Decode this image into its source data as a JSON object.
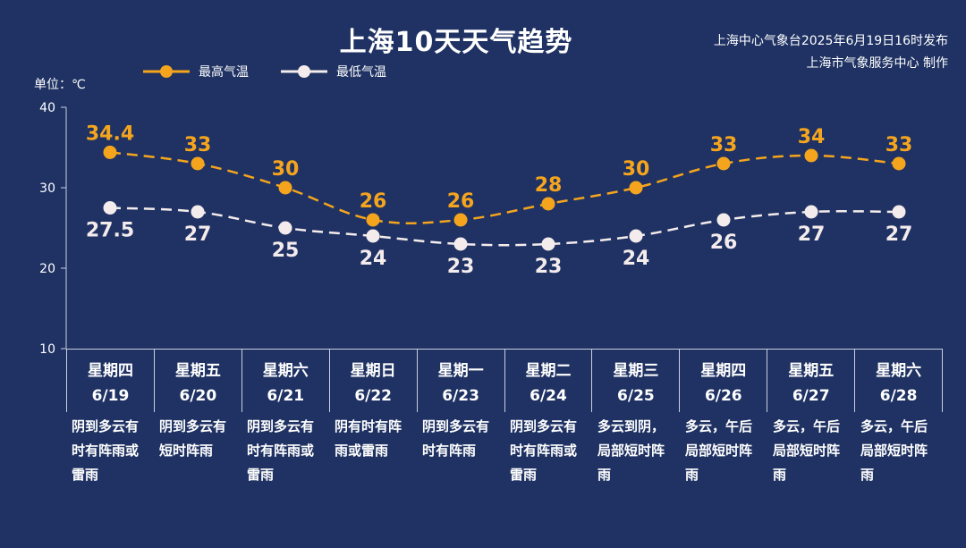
{
  "header": {
    "title": "上海10天天气趋势",
    "source_line1": "上海中心气象台2025年6月19日16时发布",
    "source_line2": "上海市气象服务中心 制作",
    "unit_label": "单位：℃"
  },
  "colors": {
    "background": "#1f3263",
    "high": "#f5a51d",
    "low": "#f4ecec",
    "grid": "#c8d0e0"
  },
  "chart_data": {
    "type": "line",
    "ylim": [
      10,
      40
    ],
    "yticks": [
      10,
      20,
      30,
      40
    ],
    "grid": false,
    "legend": "top-left",
    "categories": [
      "6/19",
      "6/20",
      "6/21",
      "6/22",
      "6/23",
      "6/24",
      "6/25",
      "6/26",
      "6/27",
      "6/28"
    ],
    "series": [
      {
        "name": "最高气温",
        "values": [
          34.4,
          33,
          30,
          26,
          26,
          28,
          30,
          33,
          34,
          33
        ]
      },
      {
        "name": "最低气温",
        "values": [
          27.5,
          27,
          25,
          24,
          23,
          23,
          24,
          26,
          27,
          27
        ]
      }
    ]
  },
  "days": [
    {
      "weekday": "星期四",
      "date": "6/19",
      "desc": "阴到多云有时有阵雨或雷雨"
    },
    {
      "weekday": "星期五",
      "date": "6/20",
      "desc": "阴到多云有短时阵雨"
    },
    {
      "weekday": "星期六",
      "date": "6/21",
      "desc": "阴到多云有时有阵雨或雷雨"
    },
    {
      "weekday": "星期日",
      "date": "6/22",
      "desc": "阴有时有阵雨或雷雨"
    },
    {
      "weekday": "星期一",
      "date": "6/23",
      "desc": "阴到多云有时有阵雨"
    },
    {
      "weekday": "星期二",
      "date": "6/24",
      "desc": "阴到多云有时有阵雨或雷雨"
    },
    {
      "weekday": "星期三",
      "date": "6/25",
      "desc": "多云到阴，局部短时阵雨"
    },
    {
      "weekday": "星期四",
      "date": "6/26",
      "desc": "多云，午后局部短时阵雨"
    },
    {
      "weekday": "星期五",
      "date": "6/27",
      "desc": "多云，午后局部短时阵雨"
    },
    {
      "weekday": "星期六",
      "date": "6/28",
      "desc": "多云，午后局部短时阵雨"
    }
  ]
}
